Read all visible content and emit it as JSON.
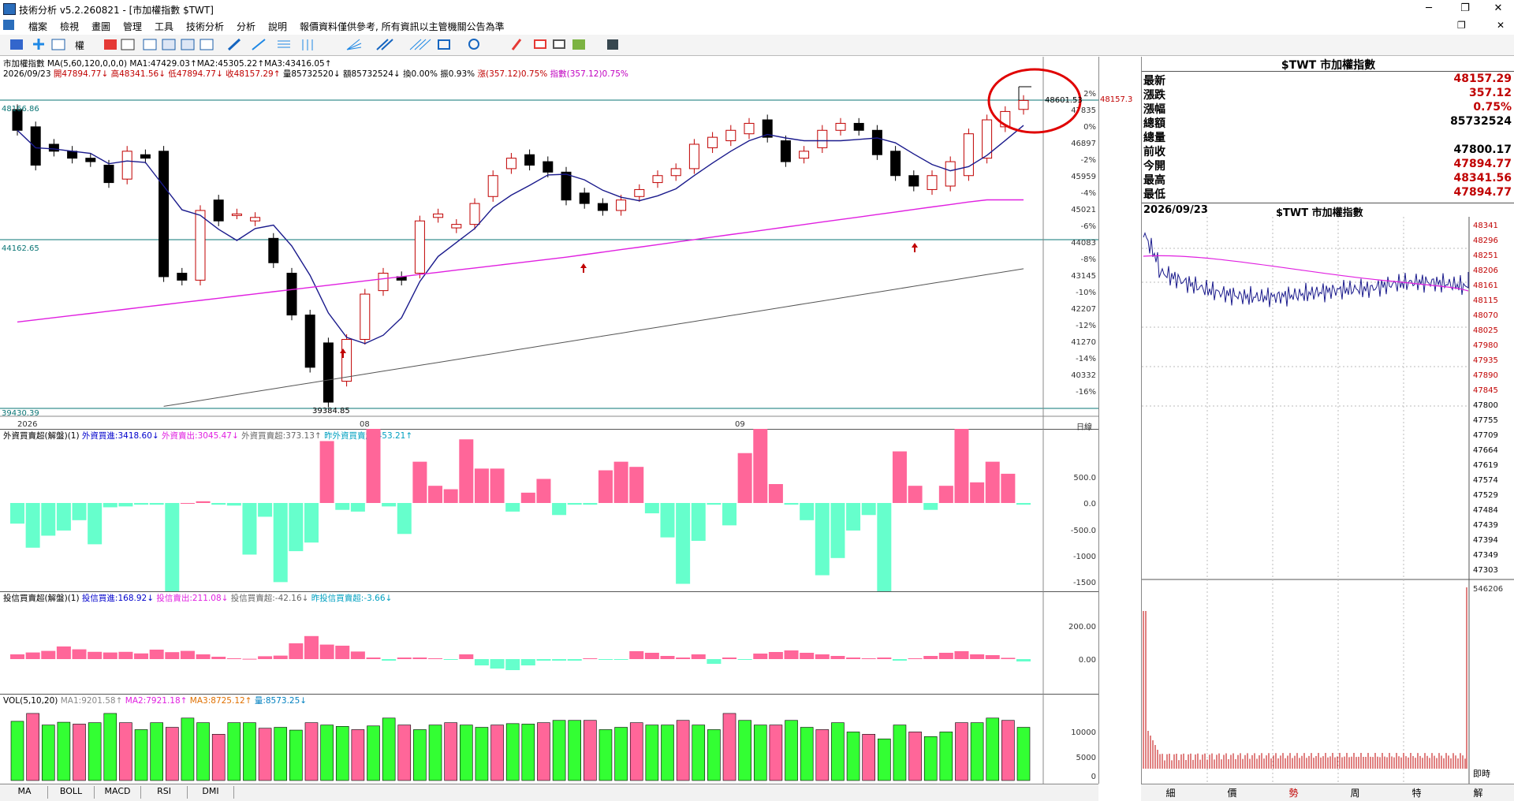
{
  "window": {
    "title": "技術分析 v5.2.260821 - [市加權指數 $TWT]",
    "minimize": "─",
    "restore": "❐",
    "close": "✕"
  },
  "menu": [
    "檔案",
    "檢視",
    "畫圖",
    "管理",
    "工具",
    "技術分析",
    "分析",
    "說明",
    "報價資料僅供參考, 所有資訊以主管機關公告為準"
  ],
  "menu_right": {
    "restore": "❐",
    "close": "✕"
  },
  "toolbar_label": "權",
  "main_chart": {
    "title": "市加權指數 MA(5,60,120,0,0,0) MA1:47429.03↑MA2:45305.22↑MA3:43416.05↑",
    "ma1": "MA1:47429.03↑",
    "ma2": "MA2:45305.22↑",
    "ma3": "MA3:43416.05↑",
    "info_date": "2026/09/23",
    "info_open": "開47894.77↓",
    "info_high": "高48341.56↓",
    "info_low": "低47894.77↓",
    "info_close": "收48157.29↑",
    "info_vol": "量85732520↓",
    "info_amt": "額85732524↓",
    "info_turn": "換0.00%",
    "info_amp": "振0.93%",
    "info_change": "漲(357.12)0.75%",
    "info_index": "指數(357.12)0.75%",
    "level_top": "48166.86",
    "level_mid": "44162.65",
    "level_low": "39430.39",
    "annotation_high": "48601.53",
    "annotation_low": "39384.85",
    "last_price": "48157.3",
    "y_ticks": [
      "2%",
      "47835",
      "0%",
      "46897",
      "-2%",
      "45959",
      "-4%",
      "45021",
      "-6%",
      "44083",
      "-8%",
      "43145",
      "-10%",
      "42207",
      "-12%",
      "41270",
      "-14%",
      "40332",
      "-16%"
    ],
    "x_labels": [
      "2026",
      "08",
      "09"
    ],
    "x_unit": "日線"
  },
  "foreign_pane": {
    "title": "外資買賣超(解盤)(1)",
    "buy": "外資買進:3418.60↓",
    "sell": "外資賣出:3045.47↓",
    "net": "外資買賣超:373.13↑",
    "prev": "昨外資買賣超:453.21↑",
    "y_ticks": [
      "500.0",
      "0.0",
      "-500.0",
      "-1000",
      "-1500"
    ]
  },
  "trust_pane": {
    "title": "投信買賣超(解盤)(1)",
    "buy": "投信買進:168.92↓",
    "sell": "投信賣出:211.08↓",
    "net": "投信買賣超:-42.16↓",
    "prev": "昨投信買賣超:-3.66↓",
    "y_ticks": [
      "200.00",
      "0.00"
    ]
  },
  "vol_pane": {
    "title": "VOL(5,10,20)",
    "ma1": "MA1:9201.58↑",
    "ma2": "MA2:7921.18↑",
    "ma3": "MA3:8725.12↑",
    "vol": "量:8573.25↓",
    "y_ticks": [
      "10000",
      "5000",
      "0"
    ]
  },
  "bottom_tabs": [
    "MA",
    "BOLL",
    "MACD",
    "RSI",
    "DMI"
  ],
  "quote": {
    "title": "$TWT 市加權指數",
    "rows": [
      {
        "label": "最新",
        "value": "48157.29",
        "red": true
      },
      {
        "label": "漲跌",
        "value": "357.12",
        "red": true
      },
      {
        "label": "漲幅",
        "value": "0.75%",
        "red": true
      },
      {
        "label": "總額",
        "value": "85732524",
        "red": false
      },
      {
        "label": "總量",
        "value": "",
        "red": false
      },
      {
        "label": "前收",
        "value": "47800.17",
        "red": false
      },
      {
        "label": "今開",
        "value": "47894.77",
        "red": true
      },
      {
        "label": "最高",
        "value": "48341.56",
        "red": true
      },
      {
        "label": "最低",
        "value": "47894.77",
        "red": true
      }
    ]
  },
  "intraday": {
    "date": "2026/09/23",
    "title": "$TWT 市加權指數",
    "y_ticks": [
      "48341",
      "48296",
      "48251",
      "48206",
      "48161",
      "48115",
      "48070",
      "48025",
      "47980",
      "47935",
      "47890",
      "47845",
      "47800",
      "47755",
      "47709",
      "47664",
      "47619",
      "47574",
      "47529",
      "47484",
      "47439",
      "47394",
      "47349",
      "47303"
    ],
    "vol_max": "546206",
    "vol_label": "即時"
  },
  "right_tabs": [
    "細",
    "價",
    "勢",
    "周",
    "特",
    "解"
  ],
  "colors": {
    "up": "#c00000",
    "down": "#000000",
    "ma1": "#1a1a8c",
    "ma2": "#e020e0",
    "ma3": "#555555",
    "level": "#0a7575",
    "pos": "#ff6699",
    "neg": "#66ffcc",
    "vol_up": "#ff6699",
    "vol_down": "#33ff33"
  }
}
